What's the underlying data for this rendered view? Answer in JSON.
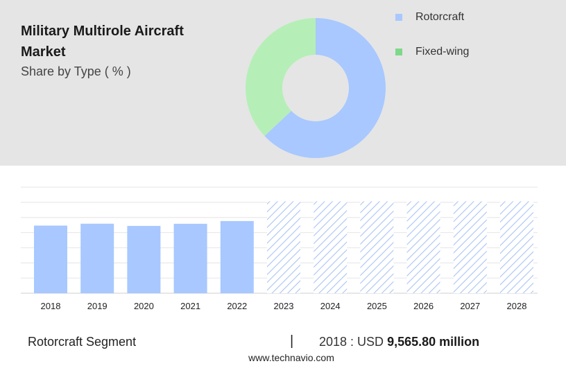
{
  "header": {
    "title": "Military Multirole Aircraft Market",
    "subtitle": "Share by Type ( % )"
  },
  "colors": {
    "rotorcraft": "#a8c8ff",
    "fixed_wing": "#b5efb7",
    "fixed_wing_legend": "#7ed88a",
    "forecast_hatch": "#aac4f5"
  },
  "chart_data": [
    {
      "type": "pie",
      "donut": true,
      "labels": [
        "Rotorcraft",
        "Fixed-wing"
      ],
      "values": [
        63,
        37
      ],
      "legend": "top-right"
    },
    {
      "type": "bar",
      "categories": [
        "2018",
        "2019",
        "2020",
        "2021",
        "2022",
        "2023",
        "2024",
        "2025",
        "2026",
        "2027",
        "2028"
      ],
      "values": [
        9565.8,
        9830,
        9520,
        9820,
        10210,
        13000,
        13000,
        13000,
        13000,
        13000,
        13000
      ],
      "forecast_from": "2023",
      "ylim": [
        0,
        15000
      ],
      "grid": true
    }
  ],
  "footer": {
    "segment": "Rotorcraft Segment",
    "separator": "|",
    "year_prefix": "2018 : USD",
    "value": "9,565.80 million",
    "url": "www.technavio.com"
  }
}
